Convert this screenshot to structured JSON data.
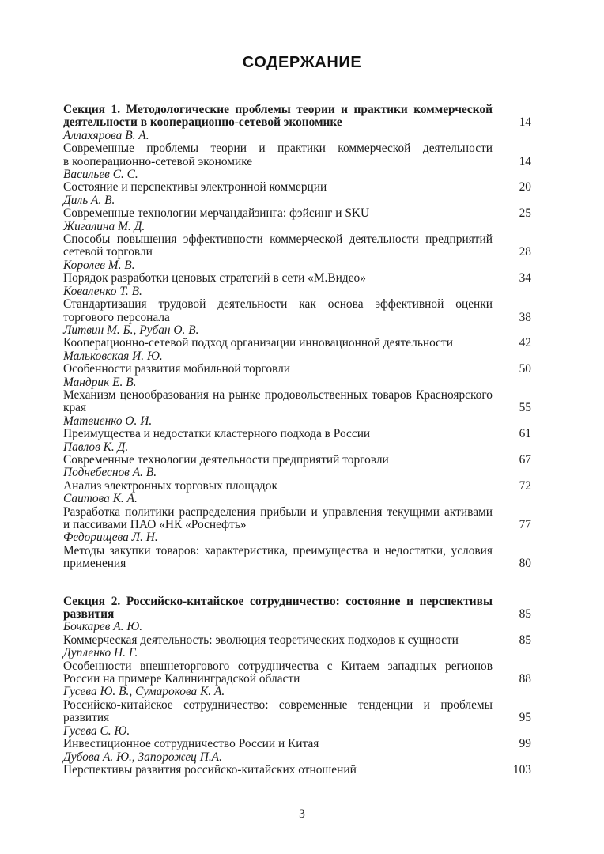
{
  "title": "СОДЕРЖАНИЕ",
  "footer_page_number": "3",
  "sections": [
    {
      "heading": "Секция 1. Методологические проблемы теории и практики коммерческой дея­тельности в кооперационно-сетевой экономике",
      "page": "14",
      "entries": [
        {
          "authors": "Аллахярова В. А.",
          "title": "Современные проблемы теории и практики коммерческой деятельности в кооперационно-сетевой экономике",
          "page": "14"
        },
        {
          "authors": "Васильев С. С.",
          "title": "Состояние и перспективы электронной коммерции",
          "page": "20"
        },
        {
          "authors": "Диль А. В.",
          "title": "Современные технологии мерчандайзинга: фэйсинг и SKU",
          "page": "25"
        },
        {
          "authors": "Жигалина М. Д.",
          "title": "Способы повышения эффективности коммерческой деятельности предприятий сете­вой торговли",
          "page": "28"
        },
        {
          "authors": "Королев М. В.",
          "title": "Порядок разработки ценовых стратегий в сети «М.Видео»",
          "page": "34"
        },
        {
          "authors": "Коваленко Т. В.",
          "title": "Стандартизация трудовой деятельности как основа эффективной оценки торгового персонала",
          "page": "38"
        },
        {
          "authors": "Литвин М. Б., Рубан О. В.",
          "title": "Кооперационно-сетевой подход организации инновационной деятельности",
          "page": "42"
        },
        {
          "authors": "Мальковская И. Ю.",
          "title": "Особенности развития мобильной торговли",
          "page": "50"
        },
        {
          "authors": "Мандрик Е. В.",
          "title": "Механизм ценообразования на рынке продовольственных товаров Красноярского края",
          "page": "55"
        },
        {
          "authors": "Матвиенко О. И.",
          "title": "Преимущества и недостатки кластерного подхода в России",
          "page": "61"
        },
        {
          "authors": "Павлов К. Д.",
          "title": "Современные технологии деятельности предприятий торговли",
          "page": "67"
        },
        {
          "authors": "Поднебеснов А. В.",
          "title": "Анализ электронных торговых площадок",
          "page": "72"
        },
        {
          "authors": "Саитова К. А.",
          "title": "Разработка политики распределения прибыли и управления текущими активами и пассивами ПАО «НК «Роснефть»",
          "page": "77"
        },
        {
          "authors": "Федорищева Л. Н.",
          "title": "Методы закупки товаров: характеристика, преимущества и недостатки, условия при­менения",
          "page": "80"
        }
      ]
    },
    {
      "heading": "Секция 2. Российско-китайское сотрудничество: состояние и перспективы раз­вития",
      "page": "85",
      "entries": [
        {
          "authors": "Бочкарев А. Ю.",
          "title": "Коммерческая деятельность: эволюция теоретических подходов к сущности",
          "page": "85"
        },
        {
          "authors": "Дупленко Н. Г.",
          "title": "Особенности внешнеторгового сотрудничества с Китаем западных регионов России на примере Калининградской области",
          "page": "88"
        },
        {
          "authors": "Гусева Ю. В., Сумарокова К. А.",
          "title": "Российско-китайское сотрудничество: современные тенденции и проблемы развития",
          "page": "95"
        },
        {
          "authors": "Гусева С. Ю.",
          "title": "Инвестиционное сотрудничество России и Китая",
          "page": "99"
        },
        {
          "authors": "Дубова А. Ю., Запорожец П.А.",
          "title": "Перспективы развития российско-китайских отношений",
          "page": "103"
        }
      ]
    }
  ]
}
